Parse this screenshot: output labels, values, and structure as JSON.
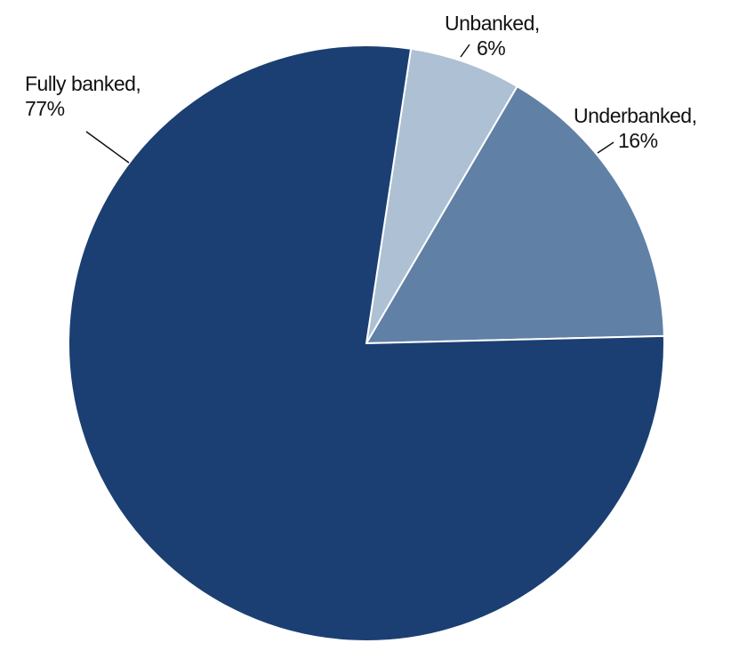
{
  "chart_data": {
    "type": "pie",
    "categories": [
      "Unbanked,",
      "Underbanked,",
      "Fully banked,"
    ],
    "values": [
      6,
      16,
      77
    ],
    "value_labels": [
      "6%",
      "16%",
      "77%"
    ],
    "colors": [
      "#adc0d4",
      "#6080a6",
      "#1b3f72"
    ]
  }
}
